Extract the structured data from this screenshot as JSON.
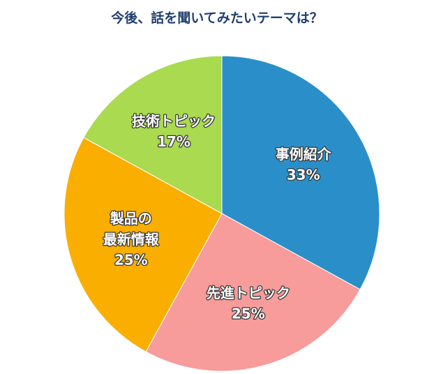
{
  "chart_data": {
    "type": "pie",
    "title": "今後、話を聞いてみたいテーマは？",
    "categories": [
      "事例紹介",
      "先進トピック",
      "製品の\n最新情報",
      "技術トピック"
    ],
    "values": [
      33,
      25,
      25,
      17
    ],
    "value_labels": [
      "33%",
      "25%",
      "25%",
      "17%"
    ],
    "colors": [
      "#2a8fc9",
      "#f79b9b",
      "#f9ae00",
      "#a9da4f"
    ]
  }
}
